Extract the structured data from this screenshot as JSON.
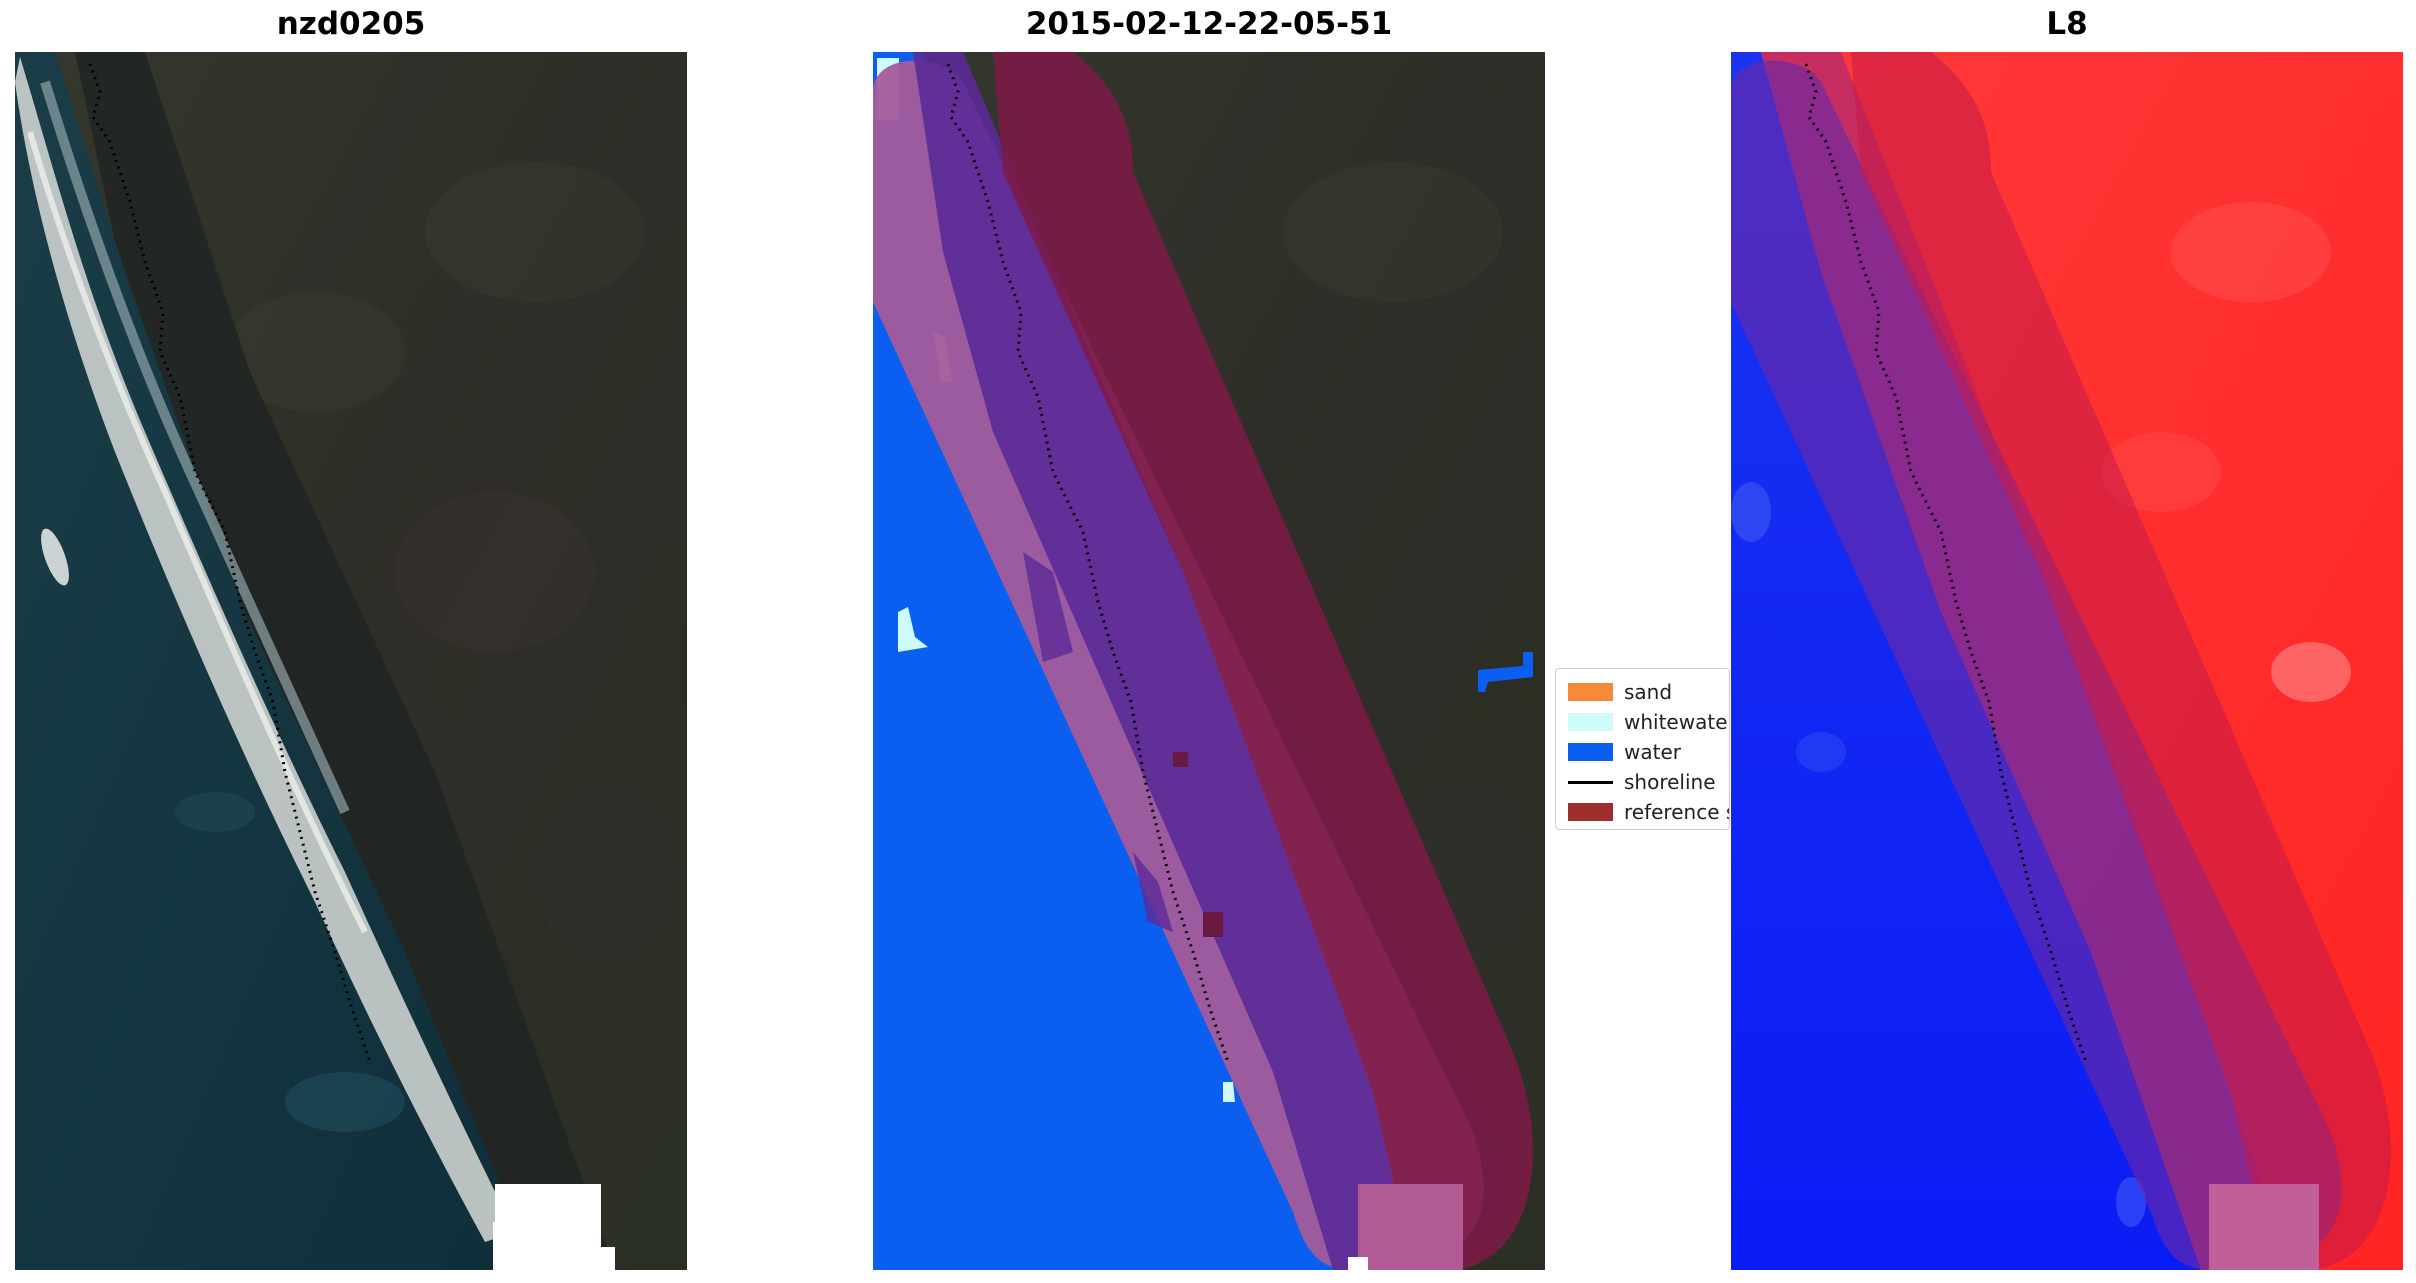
{
  "panels": [
    {
      "title": "nzd0205"
    },
    {
      "title": "2015-02-12-22-05-51"
    },
    {
      "title": "L8"
    }
  ],
  "legend": {
    "items": [
      {
        "label": "sand",
        "color": "#f58a3a"
      },
      {
        "label": "whitewater",
        "color": "#cdfafa"
      },
      {
        "label": "water",
        "color": "#0a5ff0"
      },
      {
        "label": "shoreline",
        "color": "#000000"
      },
      {
        "label": "reference shoreline buffer",
        "color": "#9e2e2e"
      }
    ]
  },
  "colors": {
    "rgb_land": "#2c3128",
    "rgb_sea": "#143440",
    "class_water": "#0a5ff0",
    "buffer_overlay": "#8b1b4f",
    "index_red": "#ff2b2b",
    "index_blue": "#0a2cf5"
  }
}
